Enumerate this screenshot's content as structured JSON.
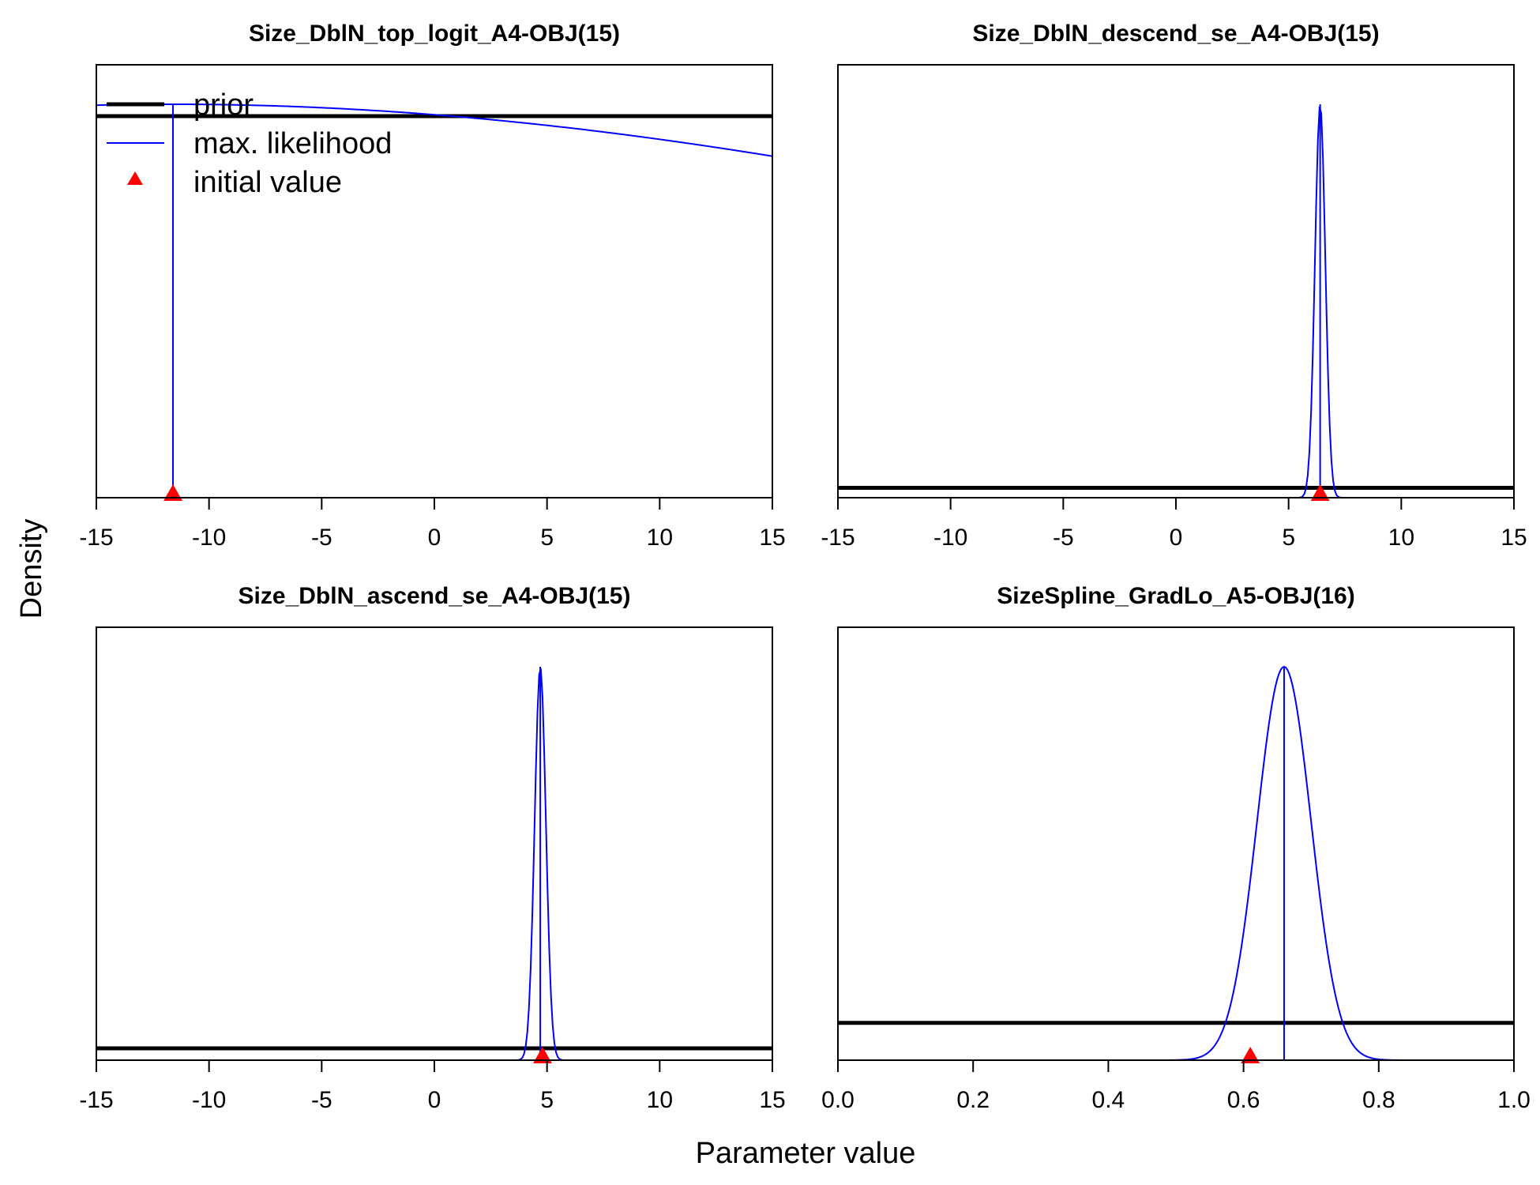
{
  "figure": {
    "xlabel": "Parameter value",
    "ylabel": "Density",
    "legend": {
      "placement": "top-left",
      "entries": [
        {
          "label": "prior",
          "color": "#000000",
          "style": "line-thick"
        },
        {
          "label": "max. likelihood",
          "color": "#0000ff",
          "style": "line"
        },
        {
          "label": "initial value",
          "color": "#ff0000",
          "style": "triangle"
        }
      ]
    }
  },
  "chart_data": [
    {
      "type": "line",
      "title": "Size_DblN_top_logit_A4-OBJ(15)",
      "xlim": [
        -15,
        15
      ],
      "xticks": [
        -15,
        -10,
        -5,
        0,
        5,
        10,
        15
      ],
      "xtick_labels": [
        "-15",
        "-10",
        "-5",
        "0",
        "5",
        "10",
        "15"
      ],
      "prior_level": 0.97,
      "mle": -11.6,
      "mle_curve": {
        "kind": "normal",
        "mean": -11.6,
        "sd": 50,
        "peak": 1.0
      },
      "initial_value": -11.6
    },
    {
      "type": "line",
      "title": "Size_DblN_descend_se_A4-OBJ(15)",
      "xlim": [
        -15,
        15
      ],
      "xticks": [
        -15,
        -10,
        -5,
        0,
        5,
        10,
        15
      ],
      "xtick_labels": [
        "-15",
        "-10",
        "-5",
        "0",
        "5",
        "10",
        "15"
      ],
      "prior_level": 0.025,
      "mle": 6.4,
      "mle_curve": {
        "kind": "normal",
        "mean": 6.4,
        "sd": 0.23,
        "peak": 1.0
      },
      "initial_value": 6.4
    },
    {
      "type": "line",
      "title": "Size_DblN_ascend_se_A4-OBJ(15)",
      "xlim": [
        -15,
        15
      ],
      "xticks": [
        -15,
        -10,
        -5,
        0,
        5,
        10,
        15
      ],
      "xtick_labels": [
        "-15",
        "-10",
        "-5",
        "0",
        "5",
        "10",
        "15"
      ],
      "prior_level": 0.03,
      "mle": 4.7,
      "mle_curve": {
        "kind": "normal",
        "mean": 4.7,
        "sd": 0.25,
        "peak": 1.0
      },
      "initial_value": 4.8
    },
    {
      "type": "line",
      "title": "SizeSpline_GradLo_A5-OBJ(16)",
      "xlim": [
        0,
        1
      ],
      "xticks": [
        0,
        0.2,
        0.4,
        0.6,
        0.8,
        1.0
      ],
      "xtick_labels": [
        "0.0",
        "0.2",
        "0.4",
        "0.6",
        "0.8",
        "1.0"
      ],
      "prior_level": 0.095,
      "mle": 0.66,
      "mle_curve": {
        "kind": "normal",
        "mean": 0.66,
        "sd": 0.04,
        "peak": 1.0
      },
      "initial_value": 0.61
    }
  ]
}
